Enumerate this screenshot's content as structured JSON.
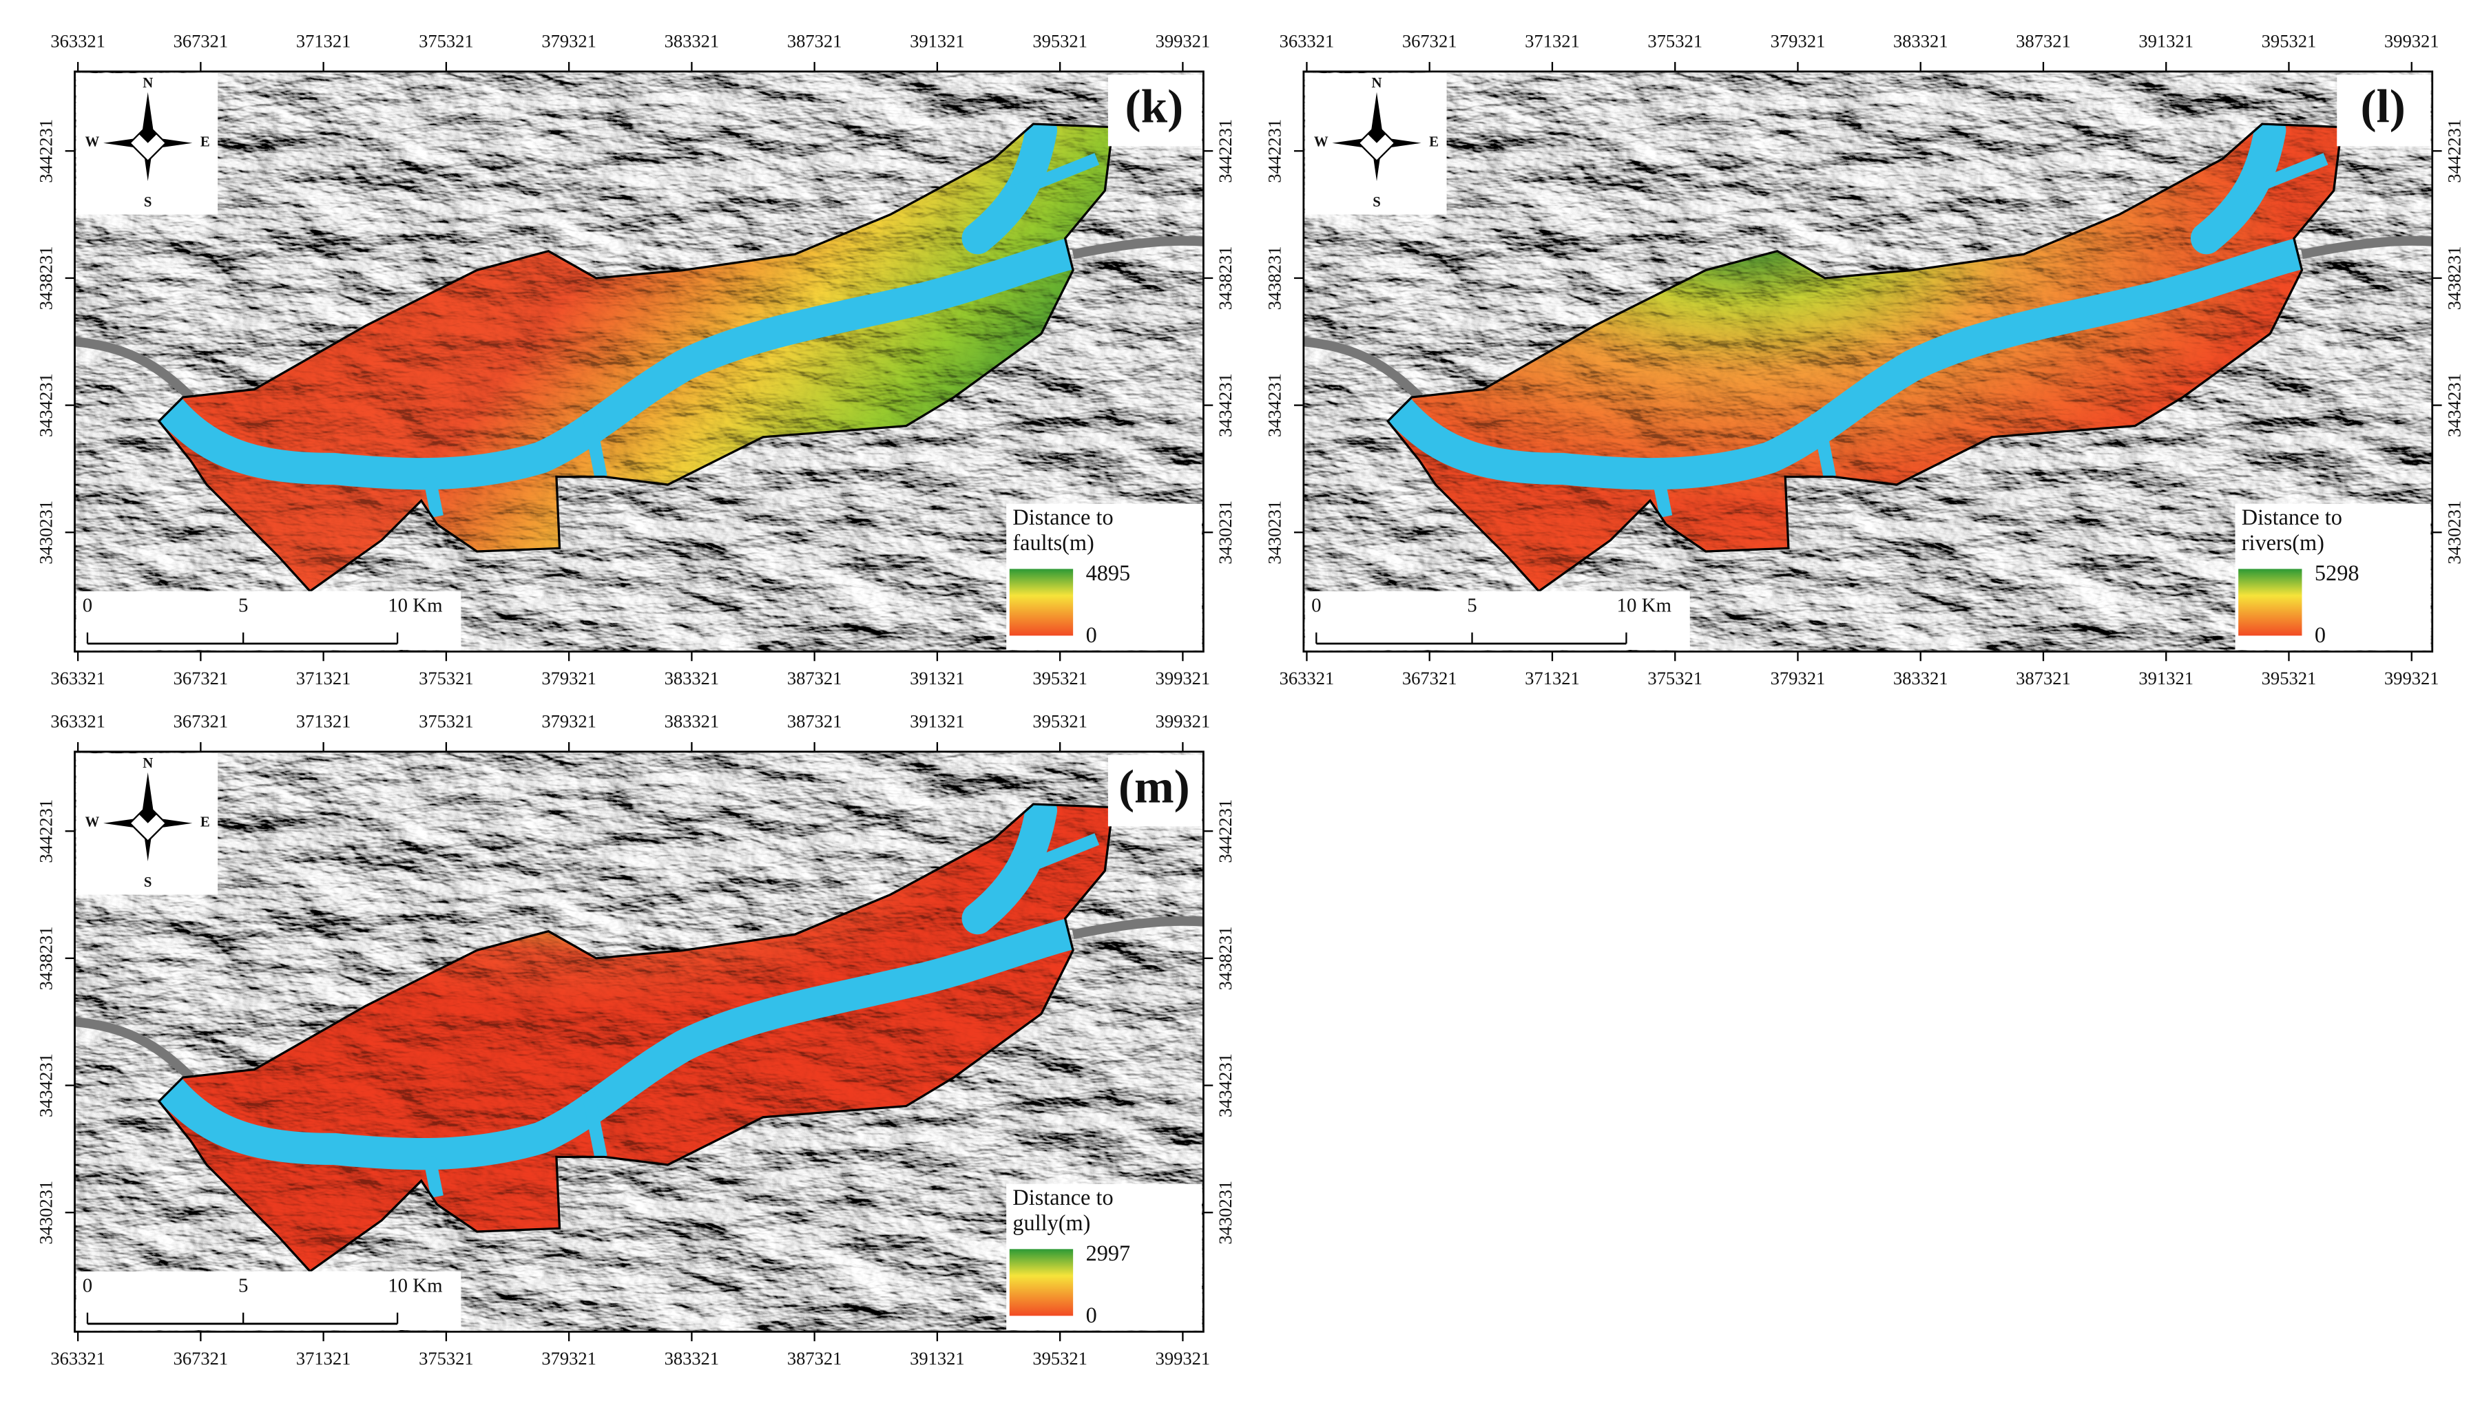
{
  "coordinates": {
    "x_ticks": [
      363321,
      367321,
      371321,
      375321,
      379321,
      383321,
      387321,
      391321,
      395321,
      399321
    ],
    "y_ticks": [
      3430231,
      3434231,
      3438231,
      3442231
    ]
  },
  "compass": {
    "north": "N",
    "south": "S",
    "west": "W",
    "east": "E"
  },
  "scale_bar": [
    "0",
    "5",
    "10 Km"
  ],
  "panels": [
    {
      "label": "(k)",
      "legend": {
        "title": [
          "Distance to",
          "faults(m)"
        ],
        "max": 4895,
        "min": 0
      }
    },
    {
      "label": "(l)",
      "legend": {
        "title": [
          "Distance to",
          "rivers(m)"
        ],
        "max": 5298,
        "min": 0
      }
    },
    {
      "label": "(m)",
      "legend": {
        "title": [
          "Distance to",
          "gully(m)"
        ],
        "max": 2997,
        "min": 0
      }
    }
  ]
}
